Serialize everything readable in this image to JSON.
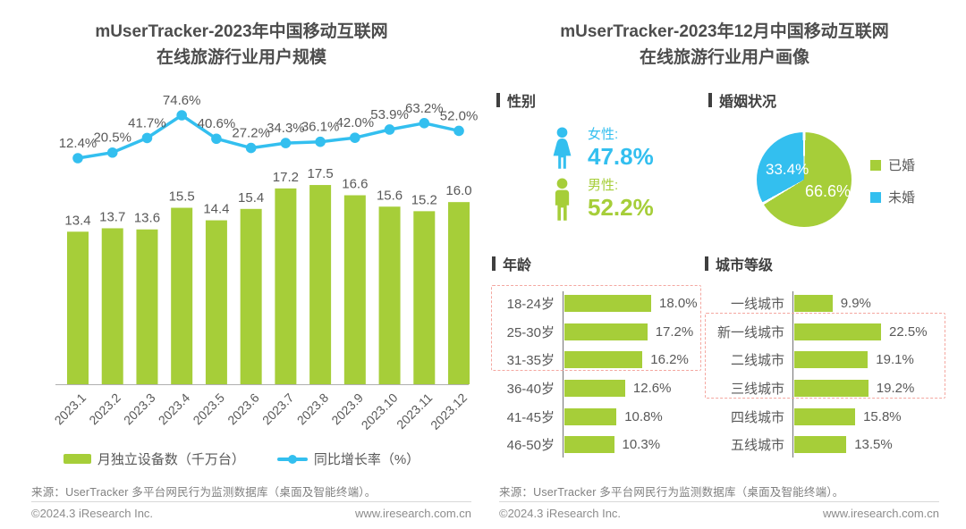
{
  "colors": {
    "green": "#a6ce39",
    "blue": "#33bfef",
    "highlight_dash": "#f4a7a0"
  },
  "titles": {
    "left_line1": "mUserTracker-2023年中国移动互联网",
    "left_line2": "在线旅游行业用户规模",
    "right_line1": "mUserTracker-2023年12月中国移动互联网",
    "right_line2": "在线旅游行业用户画像"
  },
  "footer": {
    "source": "来源：UserTracker 多平台网民行为监测数据库（桌面及智能终端）。",
    "copyright": "©2024.3 iResearch Inc.",
    "website": "www.iresearch.com.cn"
  },
  "chart_data": [
    {
      "id": "user-scale",
      "type": "bar+line",
      "title": "mUserTracker-2023年中国移动互联网在线旅游行业用户规模",
      "categories": [
        "2023.1",
        "2023.2",
        "2023.3",
        "2023.4",
        "2023.5",
        "2023.6",
        "2023.7",
        "2023.8",
        "2023.9",
        "2023.10",
        "2023.11",
        "2023.12"
      ],
      "series": [
        {
          "name": "月独立设备数（千万台）",
          "type": "bar",
          "color": "#a6ce39",
          "values": [
            13.4,
            13.7,
            13.6,
            15.5,
            14.4,
            15.4,
            17.2,
            17.5,
            16.6,
            15.6,
            15.2,
            16.0
          ]
        },
        {
          "name": "同比增长率（%）",
          "type": "line",
          "color": "#33bfef",
          "unit": "%",
          "values": [
            12.4,
            20.5,
            41.7,
            74.6,
            40.6,
            27.2,
            34.3,
            36.1,
            42.0,
            53.9,
            63.2,
            52.0
          ]
        }
      ],
      "legend_position": "bottom"
    },
    {
      "id": "gender",
      "type": "pictogram",
      "title": "性别",
      "items": [
        {
          "label": "女性:",
          "value": 47.8,
          "display": "47.8%",
          "color": "#33bfef",
          "icon": "female-icon"
        },
        {
          "label": "男性:",
          "value": 52.2,
          "display": "52.2%",
          "color": "#a6ce39",
          "icon": "male-icon"
        }
      ]
    },
    {
      "id": "marital",
      "type": "pie",
      "title": "婚姻状况",
      "slices": [
        {
          "label": "已婚",
          "value": 66.6,
          "display": "66.6%",
          "color": "#a6ce39"
        },
        {
          "label": "未婚",
          "value": 33.4,
          "display": "33.4%",
          "color": "#33bfef"
        }
      ],
      "legend_position": "right"
    },
    {
      "id": "age",
      "type": "bar",
      "orientation": "horizontal",
      "title": "年龄",
      "unit": "%",
      "categories": [
        "18-24岁",
        "25-30岁",
        "31-35岁",
        "36-40岁",
        "41-45岁",
        "46-50岁"
      ],
      "values": [
        18.0,
        17.2,
        16.2,
        12.6,
        10.8,
        10.3
      ],
      "highlighted_categories": [
        "18-24岁",
        "25-30岁",
        "31-35岁"
      ]
    },
    {
      "id": "city",
      "type": "bar",
      "orientation": "horizontal",
      "title": "城市等级",
      "unit": "%",
      "categories": [
        "一线城市",
        "新一线城市",
        "二线城市",
        "三线城市",
        "四线城市",
        "五线城市"
      ],
      "values": [
        9.9,
        22.5,
        19.1,
        19.2,
        15.8,
        13.5
      ],
      "highlighted_categories": [
        "新一线城市",
        "二线城市",
        "三线城市"
      ]
    }
  ]
}
